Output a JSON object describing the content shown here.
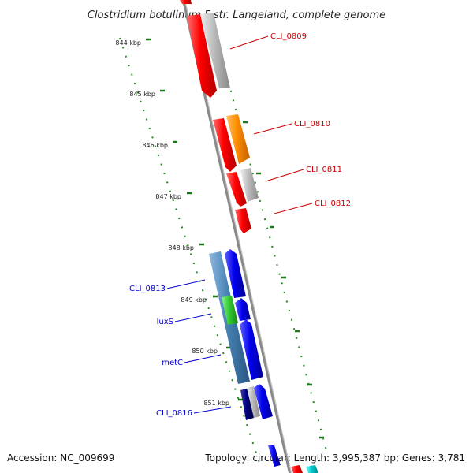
{
  "title": "Clostridium botulinum F str. Langeland, complete genome",
  "accession": "Accession: NC_009699",
  "summary": "Topology: circular; Length: 3,995,387 bp; Genes: 3,781",
  "ticks": [
    "844 kbp",
    "845 kbp",
    "846 kbp",
    "847 kbp",
    "848 kbp",
    "849 kbp",
    "850 kbp",
    "851 kbp"
  ],
  "gene_labels": {
    "right": [
      "CLI_0809",
      "CLI_0810",
      "CLI_0811",
      "CLI_0812"
    ],
    "left": [
      "CLI_0813",
      "luxS",
      "metC",
      "CLI_0816"
    ]
  },
  "colors": {
    "red": "#ff0000",
    "gray": "#bbbbbb",
    "orange": "#ff8c00",
    "blue": "#0000ee",
    "steelblue": "#4682b4",
    "green": "#33cc33",
    "navy": "#000080",
    "cyan": "#00cccc",
    "tick_green": "#228b22",
    "axis": "#8a8a8a"
  }
}
